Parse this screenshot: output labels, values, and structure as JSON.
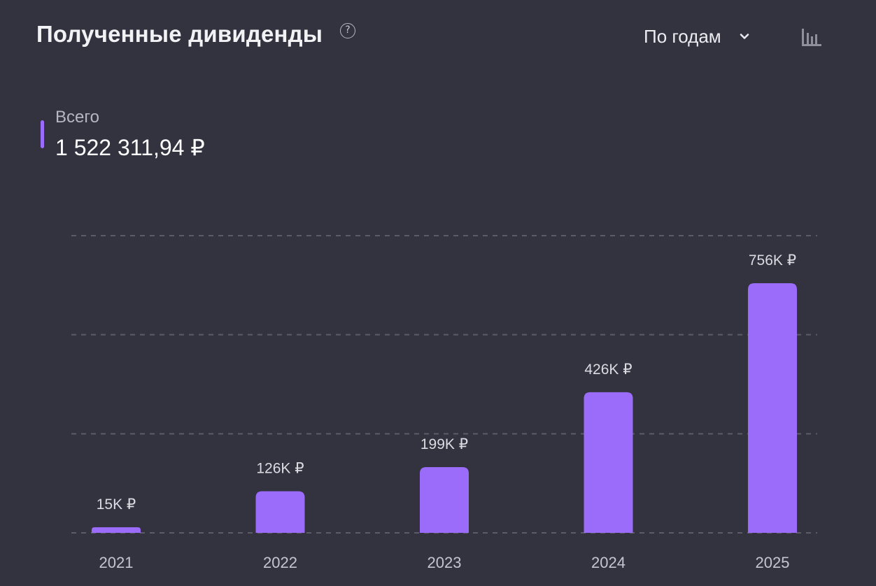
{
  "header": {
    "title": "Полученные дивиденды",
    "help_icon": "?",
    "period_label": "По годам"
  },
  "icons": {
    "help": "help-circle-icon",
    "dropdown": "chevron-down-icon",
    "chart_type": "bar-chart-icon"
  },
  "total": {
    "label": "Всего",
    "value": "1 522 311,94 ₽"
  },
  "colors": {
    "background": "#33323f",
    "bar": "#9b6bfa",
    "grid": "#5c5b68",
    "axis_text": "#c6c5cf",
    "label_text": "#dcdbe2"
  },
  "chart_data": {
    "type": "bar",
    "categories": [
      "2021",
      "2022",
      "2023",
      "2024",
      "2025"
    ],
    "values": [
      15000,
      126000,
      199000,
      426000,
      756000
    ],
    "value_labels": [
      "15K ₽",
      "126K ₽",
      "199K ₽",
      "426K ₽",
      "756K ₽"
    ],
    "ylim": [
      0,
      900000
    ],
    "grid": true,
    "legend": "none"
  }
}
